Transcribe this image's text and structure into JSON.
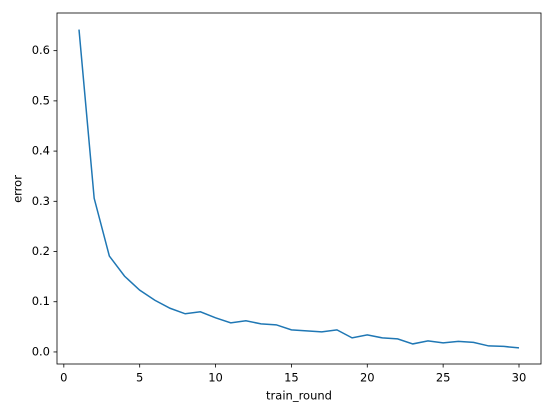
{
  "chart_data": {
    "type": "line",
    "xlabel": "train_round",
    "ylabel": "error",
    "x": [
      1,
      2,
      3,
      4,
      5,
      6,
      7,
      8,
      9,
      10,
      11,
      12,
      13,
      14,
      15,
      16,
      17,
      18,
      19,
      20,
      21,
      22,
      23,
      24,
      25,
      26,
      27,
      28,
      29,
      30
    ],
    "series": [
      {
        "color": "#1f77b4",
        "values": [
          0.642,
          0.306,
          0.191,
          0.151,
          0.123,
          0.103,
          0.087,
          0.076,
          0.08,
          0.068,
          0.058,
          0.062,
          0.056,
          0.054,
          0.044,
          0.042,
          0.04,
          0.044,
          0.028,
          0.034,
          0.028,
          0.026,
          0.016,
          0.022,
          0.018,
          0.021,
          0.019,
          0.012,
          0.011,
          0.008
        ]
      }
    ],
    "xlim": [
      -0.45,
      31.45
    ],
    "ylim": [
      -0.024,
      0.675
    ],
    "xticks": [
      0,
      5,
      10,
      15,
      20,
      25,
      30
    ],
    "yticks": [
      {
        "value": 0,
        "label": "0.0"
      },
      0.1,
      0.2,
      0.3,
      0.4,
      0.5,
      0.6
    ]
  }
}
